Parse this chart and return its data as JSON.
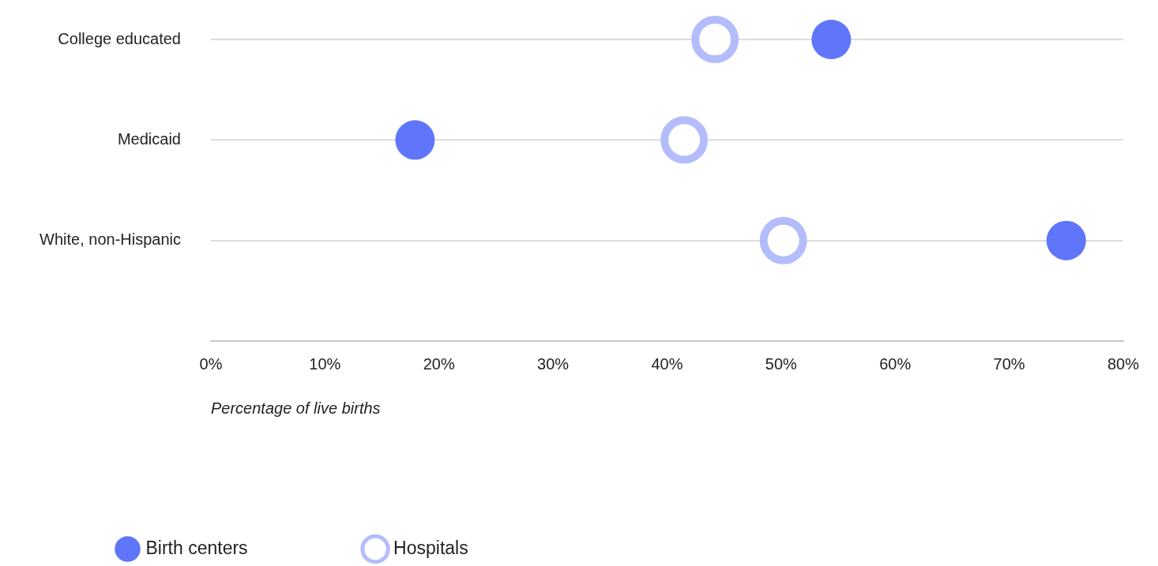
{
  "chart_data": {
    "type": "scatter",
    "xlabel": "Percentage of live births",
    "categories": [
      "College educated",
      "Medicaid",
      "White, non-Hispanic"
    ],
    "series": [
      {
        "name": "Birth centers",
        "color": "#5f76fb",
        "values": [
          54.4,
          17.9,
          75.0
        ]
      },
      {
        "name": "Hospitals",
        "color": "#b3bdfc",
        "values": [
          44.2,
          41.5,
          50.2
        ]
      }
    ],
    "xlim": [
      0,
      80
    ],
    "xticks": [
      {
        "value": 0,
        "label": "0%"
      },
      {
        "value": 10,
        "label": "10%"
      },
      {
        "value": 20,
        "label": "20%"
      },
      {
        "value": 30,
        "label": "30%"
      },
      {
        "value": 40,
        "label": "40%"
      },
      {
        "value": 50,
        "label": "50%"
      },
      {
        "value": 60,
        "label": "60%"
      },
      {
        "value": 70,
        "label": "70%"
      },
      {
        "value": 80,
        "label": "80%"
      }
    ],
    "orientation": "horizontal",
    "grid": "y",
    "legend": "bottom left",
    "marker": "circle"
  }
}
